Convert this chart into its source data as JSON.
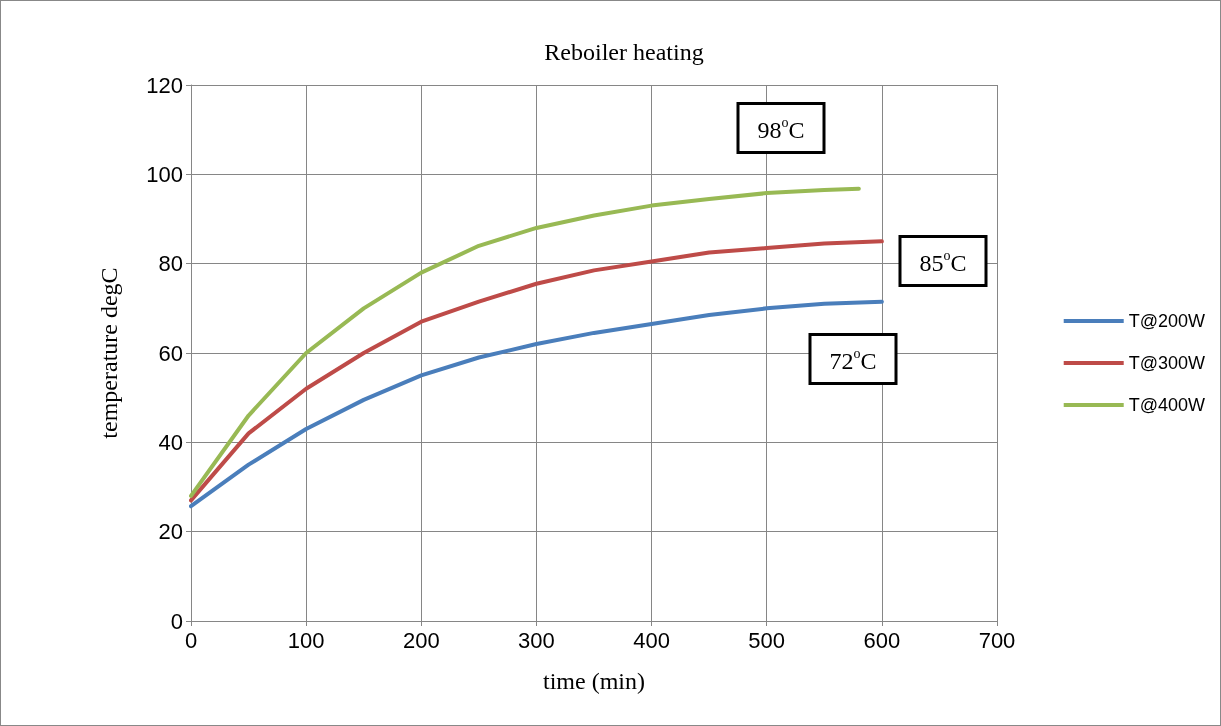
{
  "chart_data": {
    "type": "line",
    "title": "Reboiler heating",
    "xlabel": "time (min)",
    "ylabel": "temperature degC",
    "xlim": [
      0,
      700
    ],
    "xticks": [
      0,
      100,
      200,
      300,
      400,
      500,
      600,
      700
    ],
    "ylim": [
      0,
      120
    ],
    "yticks": [
      0,
      20,
      40,
      60,
      80,
      100,
      120
    ],
    "grid": true,
    "legend": "right",
    "marker": "none",
    "line_style": "solid",
    "series": [
      {
        "name": "T@200W",
        "color": "#4a7ebb",
        "x": [
          0,
          50,
          100,
          150,
          200,
          250,
          300,
          350,
          400,
          450,
          500,
          550,
          600
        ],
        "values": [
          25.7,
          35,
          43,
          49.5,
          55,
          59,
          62,
          64.5,
          66.5,
          68.5,
          70,
          71,
          71.5
        ]
      },
      {
        "name": "T@300W",
        "color": "#be4b48",
        "x": [
          0,
          50,
          100,
          150,
          200,
          250,
          300,
          350,
          400,
          450,
          500,
          550,
          600
        ],
        "values": [
          27,
          42,
          52,
          60,
          67,
          71.5,
          75.5,
          78.5,
          80.5,
          82.5,
          83.5,
          84.5,
          85
        ]
      },
      {
        "name": "T@400W",
        "color": "#98b954",
        "x": [
          0,
          50,
          100,
          150,
          200,
          250,
          300,
          350,
          400,
          450,
          500,
          550,
          580
        ],
        "values": [
          28,
          46,
          60,
          70,
          78,
          84,
          88,
          90.8,
          93,
          94.5,
          95.8,
          96.5,
          96.8
        ]
      }
    ],
    "annotations": [
      "98$^{o}$C",
      "85$^{o}$C",
      "72$^{o}$C"
    ]
  }
}
